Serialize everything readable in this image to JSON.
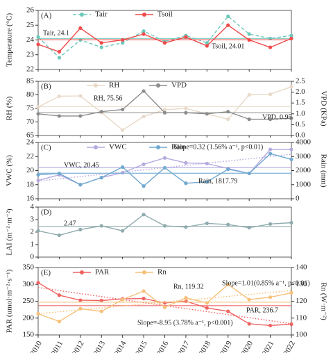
{
  "chart_data": [
    {
      "type": "line",
      "panel": "(A)",
      "ylabel": "Temperature (°C)",
      "x": [
        2010,
        2011,
        2012,
        2013,
        2014,
        2015,
        2016,
        2017,
        2018,
        2019,
        2020,
        2021,
        2022
      ],
      "xlim": [
        2010,
        2022
      ],
      "ylim": [
        22,
        26
      ],
      "yticks": [
        22,
        23,
        24,
        25,
        26
      ],
      "mean_lines": true,
      "series": [
        {
          "name": "Tair",
          "color": "#6cc9bc",
          "dashed": true,
          "values": [
            24.2,
            22.8,
            24.0,
            23.5,
            23.8,
            24.6,
            23.9,
            24.3,
            23.8,
            25.6,
            24.4,
            24.1,
            24.3
          ]
        },
        {
          "name": "Tsoil",
          "color": "#f04a4a",
          "values": [
            23.7,
            23.2,
            24.8,
            23.8,
            24.0,
            24.4,
            23.8,
            24.2,
            23.6,
            25.0,
            24.0,
            23.5,
            24.1
          ]
        }
      ],
      "annotations": [
        {
          "text": "Tair, 24.1",
          "color": "#6cc9bc"
        },
        {
          "text": "Tsoil, 24.01",
          "color": "#f04a4a"
        }
      ]
    },
    {
      "type": "line",
      "panel": "(B)",
      "ylabel": "RH (%)",
      "y2label": "VPD (KPa)",
      "x": [
        2010,
        2011,
        2012,
        2013,
        2014,
        2015,
        2016,
        2017,
        2018,
        2019,
        2020,
        2021,
        2022
      ],
      "xlim": [
        2010,
        2022
      ],
      "ylim": [
        65,
        85
      ],
      "yticks": [
        65,
        70,
        75,
        80,
        85
      ],
      "y2lim": [
        0,
        2.5
      ],
      "y2ticks": [
        {
          "value": 0,
          "label": "0.0"
        },
        0.5,
        {
          "value": 1,
          "label": "1.0"
        },
        1.5,
        {
          "value": 2,
          "label": "2.0"
        },
        2.5
      ],
      "mean_lines": true,
      "series": [
        {
          "name": "RH",
          "color": "#e9d9c8",
          "values": [
            75.5,
            79.5,
            79.6,
            73.5,
            67,
            72,
            74.5,
            75,
            73,
            71,
            80,
            80.2,
            83
          ]
        },
        {
          "name": "VPD",
          "color": "#8c8c8c",
          "axis": "y2",
          "values": [
            1.0,
            0.9,
            0.9,
            1.1,
            1.2,
            2.05,
            1.05,
            1.05,
            1.0,
            1.1,
            0.75,
            0.75,
            0.8
          ]
        }
      ],
      "annotations": [
        {
          "text": "RH, 75.56",
          "color": "#e0cfbd"
        },
        {
          "text": "VPD, 0.95",
          "color": "#8c8c8c"
        }
      ]
    },
    {
      "type": "line",
      "panel": "(C)",
      "ylabel": "VWC (%)",
      "y2label": "Rain (mm)",
      "x": [
        2010,
        2011,
        2012,
        2013,
        2014,
        2015,
        2016,
        2017,
        2018,
        2019,
        2020,
        2021,
        2022
      ],
      "xlim": [
        2010,
        2022
      ],
      "ylim": [
        16,
        24
      ],
      "yticks": [
        16,
        18,
        20,
        22,
        24
      ],
      "y2lim": [
        0,
        4000
      ],
      "y2ticks": [
        0,
        1000,
        2000,
        3000,
        4000
      ],
      "mean_lines": true,
      "series": [
        {
          "name": "VWC",
          "color": "#b5a9e0",
          "trend": true,
          "values": [
            18.6,
            19.4,
            18.0,
            19.0,
            19.7,
            20.9,
            21.8,
            21.1,
            21.0,
            20.3,
            19.6,
            23.0,
            23.0
          ]
        },
        {
          "name": "Rain",
          "color": "#6fa8d0",
          "axis": "y2",
          "values": [
            1700,
            1800,
            1000,
            1500,
            2250,
            900,
            2200,
            1100,
            1200,
            2100,
            1800,
            3200,
            2800
          ]
        }
      ],
      "annotations": [
        {
          "text": "Slope=0.32 (1.56% a⁻¹, p<0.01)",
          "color": "#a99bd8"
        },
        {
          "text": "VWC, 20.45",
          "color": "#a99bd8"
        },
        {
          "text": "Rain, 1817.79",
          "color": "#5a98c4"
        }
      ]
    },
    {
      "type": "line",
      "panel": "(D)",
      "ylabel": "LAI (m⁻²·m⁻²)",
      "x": [
        2010,
        2011,
        2012,
        2013,
        2014,
        2015,
        2016,
        2017,
        2018,
        2019,
        2020,
        2021,
        2022
      ],
      "xlim": [
        2010,
        2022
      ],
      "ylim": [
        0,
        4
      ],
      "yticks": [
        0,
        1,
        2,
        3,
        4
      ],
      "mean_lines": true,
      "series": [
        {
          "color": "#8fabad",
          "values": [
            2.1,
            1.75,
            2.2,
            2.5,
            2.1,
            3.4,
            2.5,
            2.4,
            2.7,
            2.6,
            2.35,
            2.65,
            2.75
          ]
        }
      ],
      "annotations": [
        {
          "text": "2.47",
          "color": "#7f9c9e"
        }
      ]
    },
    {
      "type": "line",
      "panel": "(E)",
      "ylabel": "PAR (umol·m⁻²·s⁻¹)",
      "y2label": "Rn (W·m⁻²)",
      "x": [
        2010,
        2011,
        2012,
        2013,
        2014,
        2015,
        2016,
        2017,
        2018,
        2019,
        2020,
        2021,
        2022
      ],
      "xlim": [
        2010,
        2022
      ],
      "xticks": [
        2010,
        2011,
        2012,
        2013,
        2014,
        2015,
        2016,
        2017,
        2018,
        2019,
        2020,
        2021,
        2022
      ],
      "ylim": [
        150,
        350
      ],
      "yticks": [
        150,
        200,
        250,
        300,
        350
      ],
      "y2lim": [
        100,
        140
      ],
      "y2ticks": [
        100,
        110,
        120,
        130,
        140
      ],
      "mean_lines": true,
      "series": [
        {
          "name": "PAR",
          "color": "#f06262",
          "trend": true,
          "values": [
            305,
            268,
            253,
            252,
            257,
            258,
            245,
            250,
            230,
            220,
            183,
            178,
            182
          ]
        },
        {
          "name": "Rn",
          "color": "#f5c07a",
          "axis": "y2",
          "trend": true,
          "values": [
            112.6,
            108,
            115.6,
            114,
            121,
            126,
            116.4,
            122,
            119,
            130,
            121,
            122.4,
            125
          ]
        }
      ],
      "annotations": [
        {
          "text": "Rn, 119.32",
          "color": "#eeaa55"
        },
        {
          "text": "Slope=1.01(0.85% a⁻¹, p<0.01)",
          "color": "#eeaa55"
        },
        {
          "text": "PAR, 236.7",
          "color": "#f06262"
        },
        {
          "text": "Slope=-8.95 (3.78% a⁻¹, p<0.001)",
          "color": "#f06262"
        }
      ]
    }
  ]
}
